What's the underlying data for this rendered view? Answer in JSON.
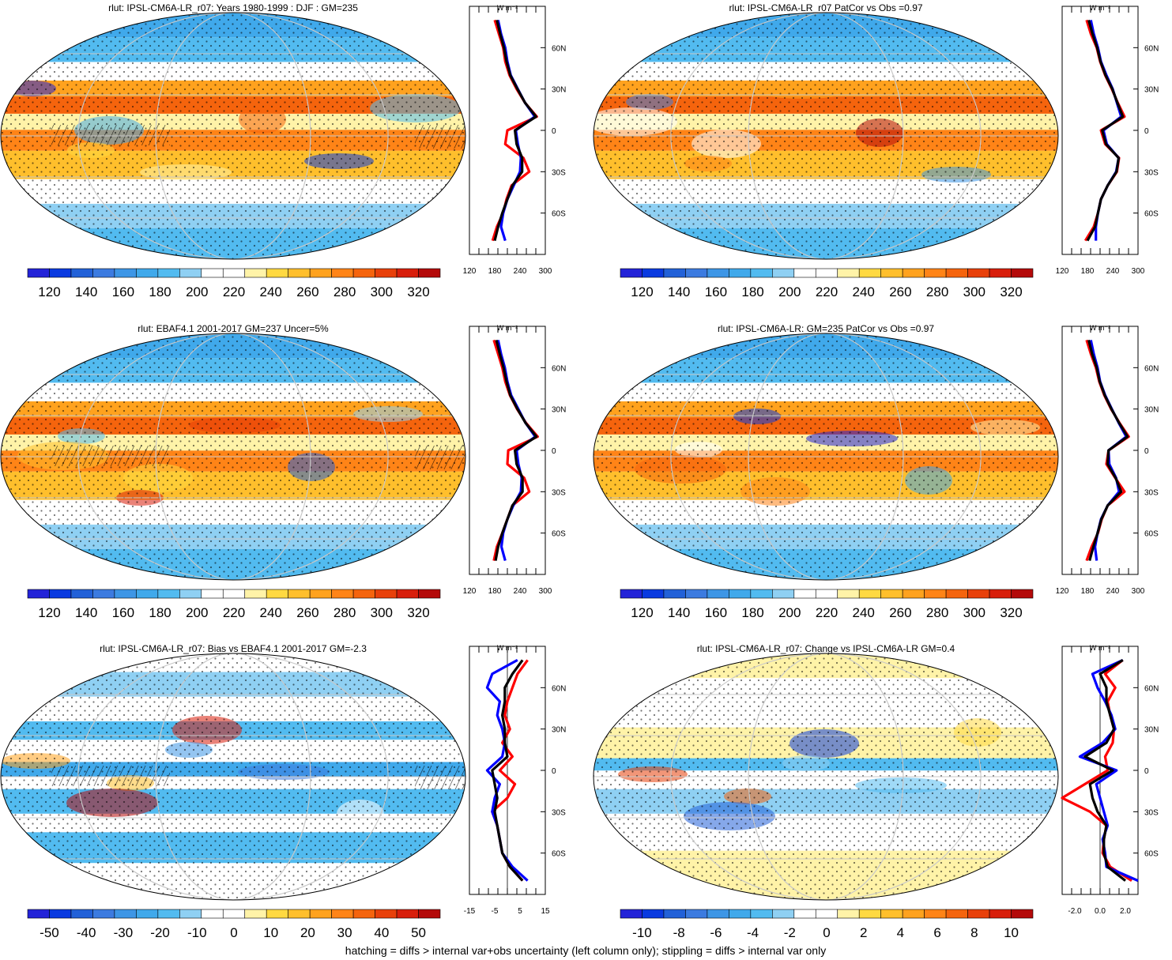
{
  "figure": {
    "footnote": "hatching = diffs > internal var+obs uncertainty (left column only); stippling = diffs > internal var only",
    "profile_unit": "W m⁻²",
    "lat_ticks": [
      "60N",
      "30N",
      "0",
      "30S",
      "60S"
    ],
    "colors": {
      "observations": "#ff0000",
      "model_ensemble": "#0000ff",
      "model_single": "#000000",
      "land_outline": "#000000"
    }
  },
  "palettes": {
    "rlut_abs": [
      "#2323d8",
      "#0a3ae0",
      "#2261d8",
      "#3c7be0",
      "#3d96e6",
      "#40a9eb",
      "#52bbf0",
      "#8fd0f3",
      "#ffffff",
      "#ffffff",
      "#fff3a8",
      "#ffd941",
      "#ffbf2c",
      "#ffa21e",
      "#ff8417",
      "#f5640d",
      "#e8400a",
      "#d81e0b",
      "#b40a0a"
    ],
    "rlut_diff": [
      "#2323d8",
      "#0a3ae0",
      "#2261d8",
      "#3c7be0",
      "#3d96e6",
      "#40a9eb",
      "#52bbf0",
      "#8fd0f3",
      "#ffffff",
      "#ffffff",
      "#fff3a8",
      "#ffd941",
      "#ffbf2c",
      "#ffa21e",
      "#ff8417",
      "#f5640d",
      "#e8400a",
      "#d81e0b",
      "#b40a0a"
    ]
  },
  "chart_data": [
    {
      "type": "heatmap",
      "title": "rlut: IPSL-CM6A-LR_r07: Years 1980-1999 : DJF : GM=235",
      "colorbar": {
        "labels": [
          "120",
          "140",
          "160",
          "180",
          "200",
          "220",
          "240",
          "260",
          "280",
          "300",
          "320"
        ],
        "palette": "rlut_abs"
      },
      "profile": {
        "x_ticks": [
          "120",
          "180",
          "240",
          "300"
        ],
        "xlim": [
          120,
          300
        ],
        "latitudes": [
          -80,
          -70,
          -60,
          -50,
          -40,
          -30,
          -20,
          -10,
          0,
          10,
          20,
          30,
          40,
          50,
          60,
          70,
          80
        ],
        "series": [
          {
            "color": "#ff0000",
            "values": [
              175,
              185,
              200,
              208,
              220,
              262,
              248,
              205,
              210,
              280,
              252,
              232,
              215,
              205,
              200,
              190,
              180
            ]
          },
          {
            "color": "#0000ff",
            "values": [
              205,
              195,
              200,
              210,
              225,
              240,
              242,
              235,
              230,
              275,
              252,
              235,
              218,
              210,
              205,
              195,
              188
            ]
          },
          {
            "color": "#000000",
            "values": [
              180,
              188,
              198,
              210,
              222,
              245,
              245,
              232,
              228,
              278,
              252,
              234,
              217,
              208,
              202,
              193,
              185
            ]
          }
        ]
      }
    },
    {
      "type": "heatmap",
      "title": "rlut: IPSL-CM6A-LR_r07 PatCor vs Obs =0.97",
      "colorbar": {
        "labels": [
          "120",
          "140",
          "160",
          "180",
          "200",
          "220",
          "240",
          "260",
          "280",
          "300",
          "320"
        ],
        "palette": "rlut_abs"
      },
      "profile": {
        "x_ticks": [
          "120",
          "180",
          "240",
          "300"
        ],
        "xlim": [
          120,
          300
        ],
        "latitudes": [
          -80,
          -70,
          -60,
          -50,
          -40,
          -30,
          -20,
          -10,
          0,
          10,
          20,
          30,
          40,
          50,
          60,
          70,
          80
        ],
        "series": [
          {
            "color": "#ff0000",
            "values": [
              175,
              195,
              205,
              212,
              228,
              250,
              255,
              222,
              212,
              268,
              252,
              238,
              222,
              210,
              202,
              188,
              178
            ]
          },
          {
            "color": "#0000ff",
            "values": [
              200,
              200,
              205,
              212,
              228,
              248,
              254,
              226,
              218,
              260,
              250,
              240,
              225,
              212,
              205,
              195,
              188
            ]
          },
          {
            "color": "#000000",
            "values": [
              180,
              198,
              205,
              212,
              228,
              249,
              254,
              224,
              215,
              264,
              251,
              239,
              223,
              211,
              203,
              192,
              183
            ]
          }
        ]
      }
    },
    {
      "type": "heatmap",
      "title": "rlut: EBAF4.1 2001-2017 GM=237 Uncer=5%",
      "colorbar": {
        "labels": [
          "120",
          "140",
          "160",
          "180",
          "200",
          "220",
          "240",
          "260",
          "280",
          "300",
          "320"
        ],
        "palette": "rlut_abs"
      },
      "profile": {
        "x_ticks": [
          "120",
          "180",
          "240",
          "300"
        ],
        "xlim": [
          120,
          300
        ],
        "latitudes": [
          -80,
          -70,
          -60,
          -50,
          -40,
          -30,
          -20,
          -10,
          0,
          10,
          20,
          30,
          40,
          50,
          60,
          70,
          80
        ],
        "series": [
          {
            "color": "#ff0000",
            "values": [
              178,
              185,
              198,
              210,
              222,
              262,
              250,
              210,
              212,
              282,
              254,
              233,
              216,
              205,
              198,
              188,
              178
            ]
          },
          {
            "color": "#0000ff",
            "values": [
              205,
              196,
              200,
              210,
              224,
              242,
              244,
              236,
              232,
              276,
              253,
              236,
              219,
              210,
              204,
              195,
              188
            ]
          },
          {
            "color": "#000000",
            "values": [
              182,
              188,
              198,
              210,
              222,
              246,
              246,
              232,
              228,
              279,
              253,
              234,
              217,
              208,
              201,
              192,
              184
            ]
          }
        ]
      }
    },
    {
      "type": "heatmap",
      "title": "rlut: IPSL-CM6A-LR: GM=235 PatCor vs Obs =0.97",
      "colorbar": {
        "labels": [
          "120",
          "140",
          "160",
          "180",
          "200",
          "220",
          "240",
          "260",
          "280",
          "300",
          "320"
        ],
        "palette": "rlut_abs"
      },
      "profile": {
        "x_ticks": [
          "120",
          "180",
          "240",
          "300"
        ],
        "xlim": [
          120,
          300
        ],
        "latitudes": [
          -80,
          -70,
          -60,
          -50,
          -40,
          -30,
          -20,
          -10,
          0,
          10,
          20,
          30,
          40,
          50,
          60,
          70,
          80
        ],
        "series": [
          {
            "color": "#ff0000",
            "values": [
              178,
              190,
              205,
              214,
              228,
              268,
              246,
              225,
              230,
              278,
              256,
              236,
              220,
              208,
              200,
              188,
              178
            ]
          },
          {
            "color": "#0000ff",
            "values": [
              202,
              198,
              204,
              212,
              228,
              255,
              248,
              232,
              230,
              272,
              254,
              238,
              222,
              210,
              204,
              195,
              188
            ]
          },
          {
            "color": "#000000",
            "values": [
              185,
              194,
              204,
              213,
              228,
              260,
              247,
              228,
              230,
              275,
              255,
              237,
              221,
              209,
              202,
              191,
              183
            ]
          }
        ]
      }
    },
    {
      "type": "heatmap",
      "title": "rlut: IPSL-CM6A-LR_r07: Bias vs EBAF4.1 2001-2017 GM=-2.3",
      "colorbar": {
        "labels": [
          "-50",
          "-40",
          "-30",
          "-20",
          "-10",
          "0",
          "10",
          "20",
          "30",
          "40",
          "50"
        ],
        "palette": "rlut_diff"
      },
      "profile": {
        "x_ticks": [
          "-15",
          "-5",
          "5",
          "15"
        ],
        "xlim": [
          -15,
          15
        ],
        "latitudes": [
          -80,
          -70,
          -60,
          -50,
          -40,
          -30,
          -20,
          -10,
          0,
          10,
          20,
          30,
          40,
          50,
          60,
          70,
          80
        ],
        "series": [
          {
            "color": "#ff0000",
            "values": [
              6,
              1,
              -2,
              -3,
              -4,
              -6,
              0,
              3,
              -3,
              2,
              -2,
              1,
              -1,
              0,
              2,
              4,
              8
            ]
          },
          {
            "color": "#0000ff",
            "values": [
              8,
              2,
              -2,
              -3,
              -4,
              -6,
              -5,
              -3,
              -8,
              -2,
              -1,
              -2,
              -4,
              -3,
              -8,
              -6,
              4
            ]
          },
          {
            "color": "#000000",
            "values": [
              6,
              1,
              -2,
              -3,
              -4,
              -5,
              -4,
              -5,
              -6,
              0,
              -1,
              -1,
              -2,
              -1,
              -1,
              2,
              6
            ]
          }
        ]
      }
    },
    {
      "type": "heatmap",
      "title": "rlut: IPSL-CM6A-LR_r07: Change vs IPSL-CM6A-LR GM=0.4",
      "colorbar": {
        "labels": [
          "-10",
          "-8",
          "-6",
          "-4",
          "-2",
          "0",
          "2",
          "4",
          "6",
          "8",
          "10"
        ],
        "palette": "rlut_diff"
      },
      "profile": {
        "x_ticks": [
          "-2.0",
          "0.0",
          "2.0"
        ],
        "xlim": [
          -3,
          3
        ],
        "latitudes": [
          -80,
          -70,
          -60,
          -50,
          -40,
          -30,
          -20,
          -10,
          0,
          10,
          20,
          30,
          40,
          50,
          60,
          70,
          80
        ],
        "series": [
          {
            "color": "#ff0000",
            "values": [
              2.5,
              0.8,
              0.2,
              0.3,
              0.5,
              -0.8,
              -3.0,
              -1.2,
              0.6,
              0.4,
              1.0,
              1.1,
              0.8,
              0.6,
              1.2,
              0.4,
              1.8
            ]
          },
          {
            "color": "#0000ff",
            "values": [
              3.0,
              0.5,
              0.4,
              0.2,
              0.6,
              0.3,
              0.0,
              -0.3,
              1.3,
              -1.6,
              0.2,
              1.2,
              0.9,
              0.4,
              -0.2,
              -0.6,
              1.8
            ]
          },
          {
            "color": "#000000",
            "values": [
              2.0,
              0.6,
              0.3,
              0.3,
              0.5,
              -0.2,
              -0.6,
              -0.8,
              1.0,
              -1.2,
              0.5,
              1.1,
              0.8,
              0.5,
              0.5,
              0.0,
              1.8
            ]
          }
        ]
      }
    }
  ]
}
